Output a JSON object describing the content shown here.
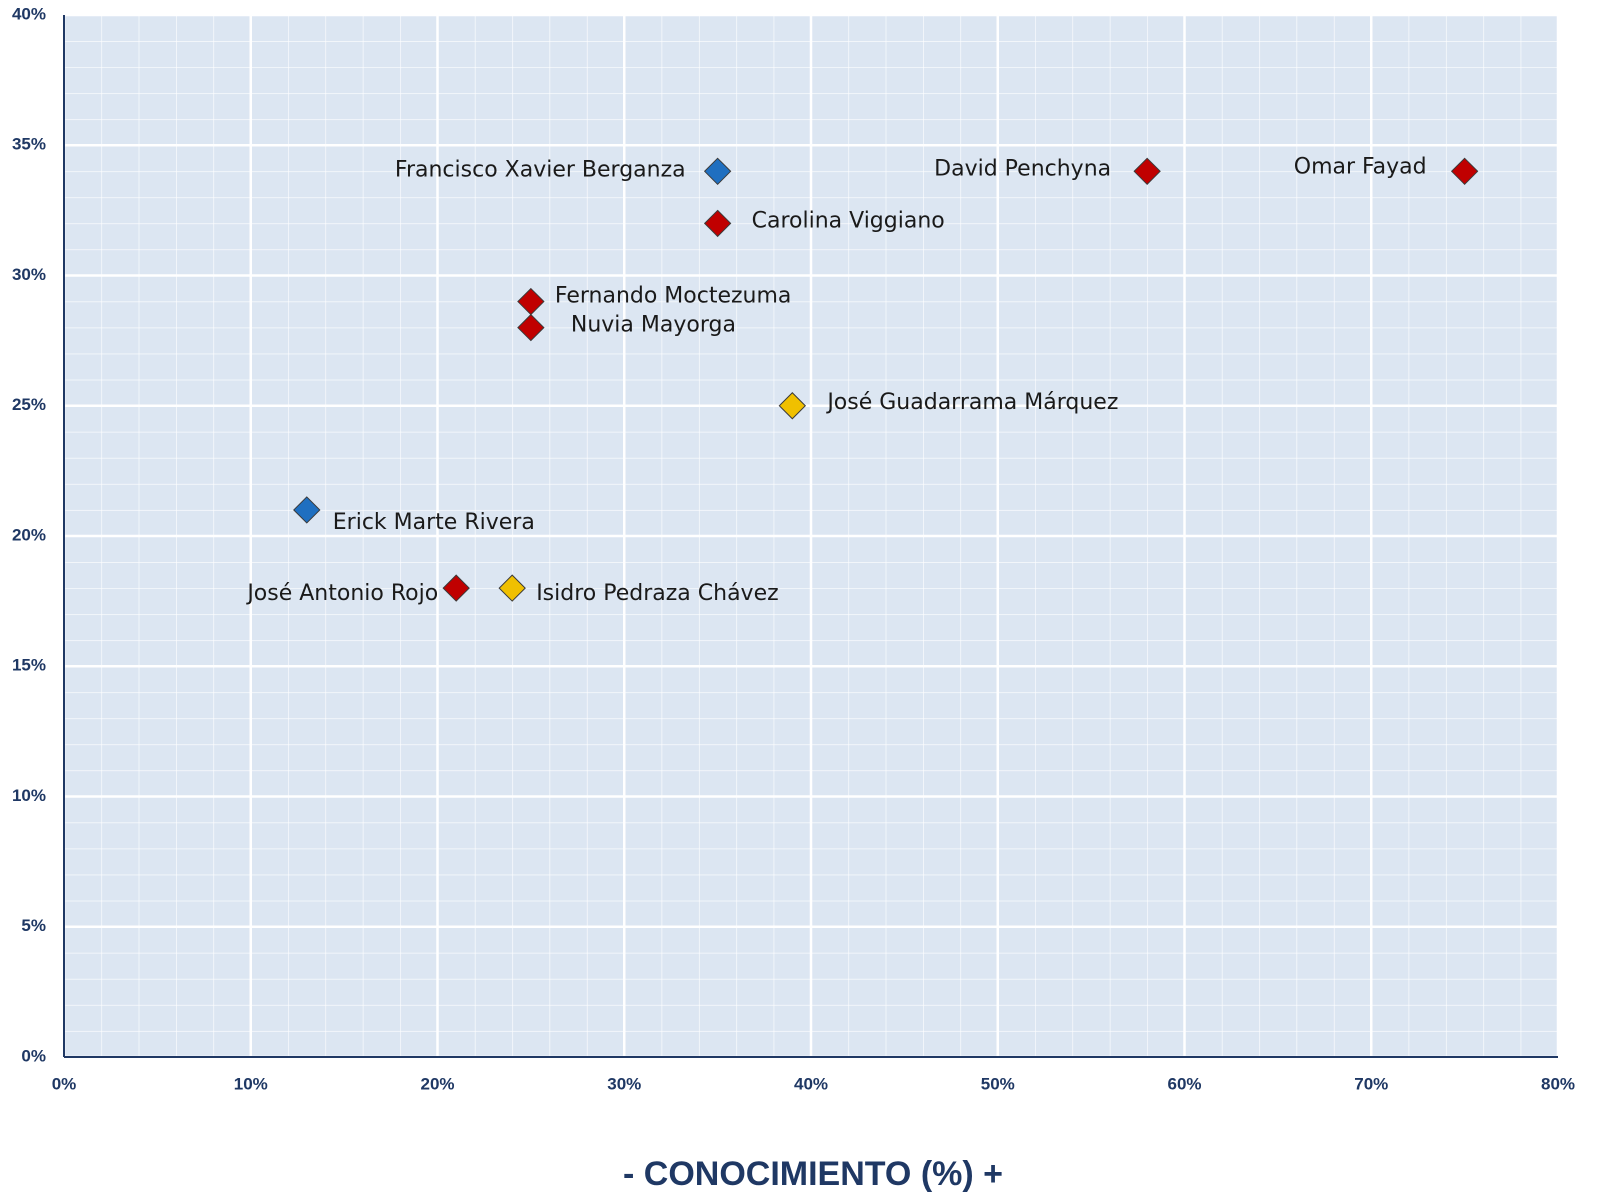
{
  "chart_data": {
    "type": "scatter",
    "xlabel": "- CONOCIMIENTO (%) +",
    "xlim": [
      0,
      80
    ],
    "ylim": [
      0,
      40
    ],
    "xticks": [
      {
        "value": 0,
        "label": "0%"
      },
      {
        "value": 10,
        "label": "10%"
      },
      {
        "value": 20,
        "label": "20%"
      },
      {
        "value": 30,
        "label": "30%"
      },
      {
        "value": 40,
        "label": "40%"
      },
      {
        "value": 50,
        "label": "50%"
      },
      {
        "value": 60,
        "label": "60%"
      },
      {
        "value": 70,
        "label": "70%"
      },
      {
        "value": 80,
        "label": "80%"
      }
    ],
    "yticks": [
      {
        "value": 0,
        "label": "0%"
      },
      {
        "value": 5,
        "label": "5%"
      },
      {
        "value": 10,
        "label": "10%"
      },
      {
        "value": 15,
        "label": "15%"
      },
      {
        "value": 20,
        "label": "20%"
      },
      {
        "value": 25,
        "label": "25%"
      },
      {
        "value": 30,
        "label": "30%"
      },
      {
        "value": 35,
        "label": "35%"
      },
      {
        "value": 40,
        "label": "40%"
      }
    ],
    "grid": true,
    "labels": [
      "Francisco Xavier Berganza",
      "David Penchyna",
      "Omar Fayad",
      "Carolina Viggiano",
      "Fernando Moctezuma",
      "Nuvia Mayorga",
      "José Guadarrama Márquez",
      "Erick Marte Rivera",
      "José Antonio Rojo",
      "Isidro Pedraza Chávez"
    ],
    "x": [
      35,
      58,
      75,
      35,
      25,
      25,
      39,
      13,
      21,
      24
    ],
    "values": [
      34,
      34,
      34,
      32,
      29,
      28,
      25,
      21,
      18,
      18
    ],
    "colors": [
      "#1f6fc0",
      "#c00000",
      "#c00000",
      "#c00000",
      "#c00000",
      "#c00000",
      "#f0c000",
      "#1f6fc0",
      "#c00000",
      "#f0c000"
    ]
  }
}
